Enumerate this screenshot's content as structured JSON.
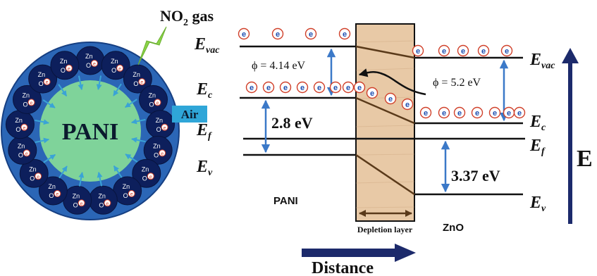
{
  "labels": {
    "no2_gas": "NO",
    "no2_sub": "2",
    "no2_suffix": " gas",
    "pani_center": "PANI",
    "air": "Air",
    "zn": "Zn",
    "o": "O",
    "electron": "e",
    "e_letter": "E",
    "vac_sub": "vac",
    "c_sub": "c",
    "f_sub": "f",
    "v_sub": "v",
    "phi_pani": "ϕ = 4.14 eV",
    "phi_zno": "ϕ = 5.2 eV",
    "gap_pani": "2.8 eV",
    "gap_zno": "3.37 eV",
    "pani_label": "PANI",
    "zno_label": "ZnO",
    "depletion": "Depletion layer",
    "distance": "Distance",
    "energy_axis": "E"
  },
  "colors": {
    "particle_outer": "#2b66b6",
    "particle_core": "#7fd39a",
    "zno_grain": "#0d1f5c",
    "air_box": "#2fa6d8",
    "gas_arrow": "#8bd448",
    "electron_ring": "#d0402a",
    "electron_text": "#1f4fb0",
    "arrow_blue": "#3b79c8",
    "axis_navy": "#1c2a6b",
    "depletion_fill": "#e8c9a6",
    "band_dark": "#5a3a1a"
  }
}
